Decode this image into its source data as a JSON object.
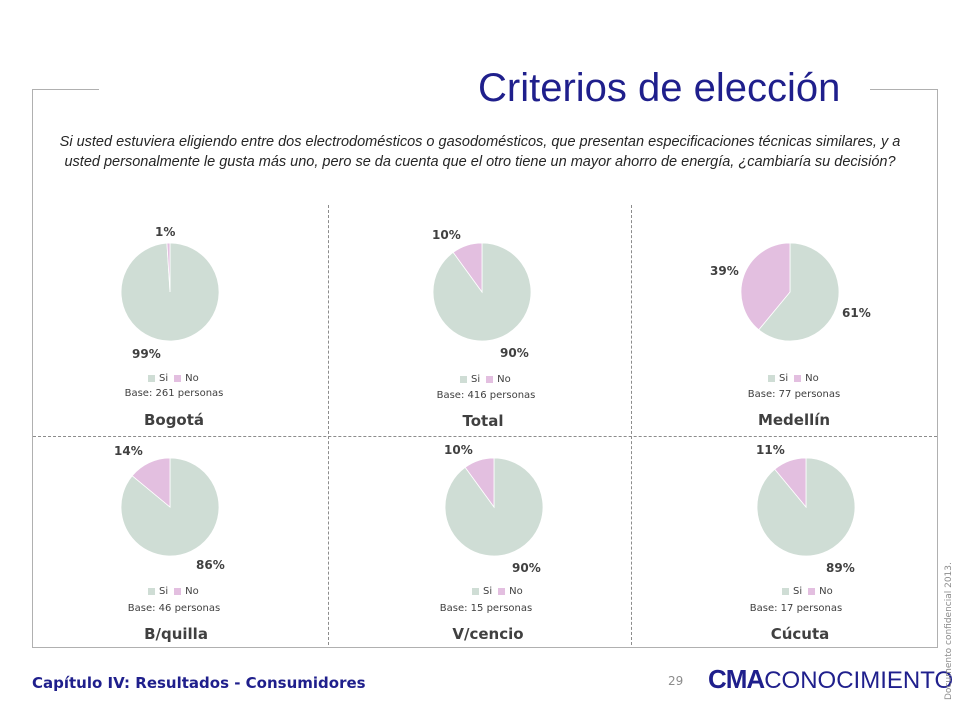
{
  "page": {
    "title": "Criterios de elección",
    "question": "Si usted estuviera eligiendo entre dos electrodomésticos o gasodomésticos, que presentan especificaciones técnicas similares, y a usted personalmente le gusta más uno, pero se da cuenta que el otro tiene un mayor ahorro de energía, ¿cambiaría su decisión?",
    "chapter": "Capítulo IV: Resultados - Consumidores",
    "page_number": "29",
    "logo_strong": "CMA",
    "logo_light": "CONOCIMIENTO",
    "side_note": "Documento confidencial 2013."
  },
  "colors": {
    "si": "#cfddd5",
    "no": "#e3bfe0"
  },
  "chart_data": [
    {
      "type": "pie",
      "city": "Bogotá",
      "base": "Base: 261 personas",
      "categories": [
        "Si",
        "No"
      ],
      "values": [
        99,
        1
      ],
      "labels": [
        "99%",
        "1%"
      ]
    },
    {
      "type": "pie",
      "city": "Total",
      "base": "Base: 416 personas",
      "categories": [
        "Si",
        "No"
      ],
      "values": [
        90,
        10
      ],
      "labels": [
        "90%",
        "10%"
      ]
    },
    {
      "type": "pie",
      "city": "Medellín",
      "base": "Base: 77 personas",
      "categories": [
        "Si",
        "No"
      ],
      "values": [
        61,
        39
      ],
      "labels": [
        "61%",
        "39%"
      ]
    },
    {
      "type": "pie",
      "city": "B/quilla",
      "base": "Base: 46 personas",
      "categories": [
        "Si",
        "No"
      ],
      "values": [
        86,
        14
      ],
      "labels": [
        "86%",
        "14%"
      ]
    },
    {
      "type": "pie",
      "city": "V/cencio",
      "base": "Base: 15 personas",
      "categories": [
        "Si",
        "No"
      ],
      "values": [
        90,
        10
      ],
      "labels": [
        "90%",
        "10%"
      ]
    },
    {
      "type": "pie",
      "city": "Cúcuta",
      "base": "Base: 17 personas",
      "categories": [
        "Si",
        "No"
      ],
      "values": [
        89,
        11
      ],
      "labels": [
        "89%",
        "11%"
      ]
    }
  ]
}
